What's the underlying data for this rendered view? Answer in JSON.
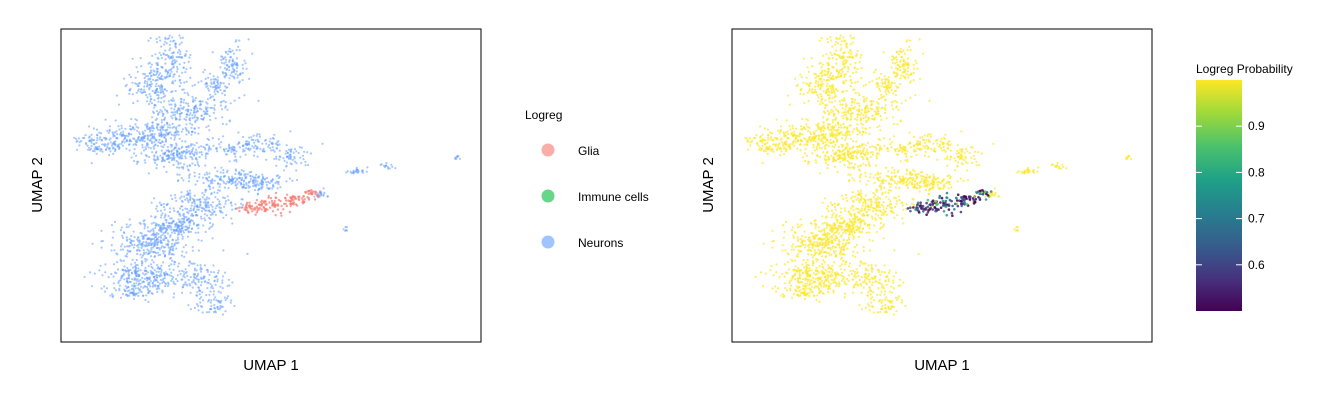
{
  "chart_data": [
    {
      "type": "scatter",
      "xlabel": "UMAP 1",
      "ylabel": "UMAP 2",
      "axis_ticks_shown": false,
      "legend": {
        "title": "Logreg",
        "placement": "right",
        "entries": [
          {
            "label": "Glia",
            "color": "#F8766D"
          },
          {
            "label": "Immune cells",
            "color": "#00BA38"
          },
          {
            "label": "Neurons",
            "color": "#619CFF"
          }
        ]
      },
      "series": [
        {
          "name": "Neurons",
          "color": "#619CFF",
          "relative_abundance": "majority"
        },
        {
          "name": "Glia",
          "color": "#F8766D",
          "relative_abundance": "small cluster"
        },
        {
          "name": "Immune cells",
          "color": "#00BA38",
          "relative_abundance": "none visible"
        }
      ]
    },
    {
      "type": "scatter",
      "xlabel": "UMAP 1",
      "ylabel": "UMAP 2",
      "axis_ticks_shown": false,
      "color_scale": {
        "title": "Logreg Probability",
        "palette": "viridis",
        "range": [
          0.5,
          1.0
        ],
        "ticks": [
          "0.6",
          "0.7",
          "0.8",
          "0.9"
        ],
        "placement": "right"
      }
    }
  ]
}
